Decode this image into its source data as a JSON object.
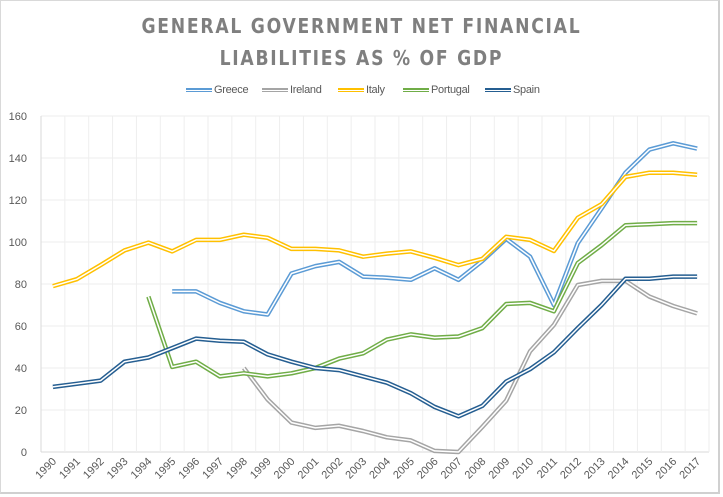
{
  "chart_data": {
    "type": "line",
    "title": "GENERAL GOVERNMENT NET FINANCIAL LIABILITIES AS % OF GDP",
    "title_lines": [
      "GENERAL GOVERNMENT NET FINANCIAL",
      "LIABILITIES AS % OF GDP"
    ],
    "xlabel": "",
    "ylabel": "",
    "ylim": [
      0,
      160
    ],
    "yticks": [
      0,
      20,
      40,
      60,
      80,
      100,
      120,
      140,
      160
    ],
    "grid": true,
    "legend_position": "top",
    "categories": [
      "1990",
      "1991",
      "1992",
      "1993",
      "1994",
      "1995",
      "1996",
      "1997",
      "1998",
      "1999",
      "2000",
      "2001",
      "2002",
      "2003",
      "2004",
      "2005",
      "2006",
      "2007",
      "2008",
      "2009",
      "2010",
      "2011",
      "2012",
      "2013",
      "2014",
      "2015",
      "2016",
      "2017"
    ],
    "series": [
      {
        "name": "Greece",
        "color": "#5b9bd5",
        "values": [
          null,
          null,
          null,
          null,
          null,
          76.5,
          76.5,
          71,
          67,
          65.5,
          85,
          88.5,
          90.5,
          83.5,
          83,
          82,
          87.5,
          82,
          91,
          101.5,
          93,
          70,
          99.5,
          116,
          133,
          144,
          147,
          144.5
        ]
      },
      {
        "name": "Ireland",
        "color": "#a5a5a5",
        "values": [
          null,
          null,
          null,
          null,
          null,
          null,
          null,
          null,
          40,
          25,
          14,
          11.5,
          12.5,
          10,
          7,
          5.5,
          0.5,
          0,
          12,
          24.5,
          48,
          60.5,
          79.5,
          81.5,
          81.5,
          74,
          69.5,
          66
        ]
      },
      {
        "name": "Italy",
        "color": "#ffc000",
        "values": [
          79,
          82.3,
          89,
          96,
          99.7,
          95.5,
          101,
          101,
          103.5,
          102,
          96.7,
          96.7,
          96,
          93,
          94.5,
          95.5,
          92.5,
          89,
          92,
          102.5,
          101,
          95.7,
          111.5,
          118,
          131,
          133,
          133,
          132
        ]
      },
      {
        "name": "Portugal",
        "color": "#70ad47",
        "values": [
          null,
          null,
          null,
          null,
          74,
          40.5,
          43,
          36,
          37.5,
          36,
          37.5,
          40,
          44.5,
          47,
          53.5,
          56,
          54.5,
          55,
          59,
          70.5,
          71,
          67,
          90,
          98.5,
          108,
          108.5,
          109,
          109
        ]
      },
      {
        "name": "Spain",
        "color": "#255e91",
        "values": [
          31,
          32.5,
          34,
          43,
          45,
          49.5,
          54,
          53,
          52.5,
          46.5,
          43,
          40,
          39,
          36,
          33,
          28,
          21.5,
          17,
          22,
          33.5,
          39.5,
          47.5,
          59,
          70,
          82.5,
          82.5,
          83.5,
          83.5
        ]
      }
    ]
  }
}
